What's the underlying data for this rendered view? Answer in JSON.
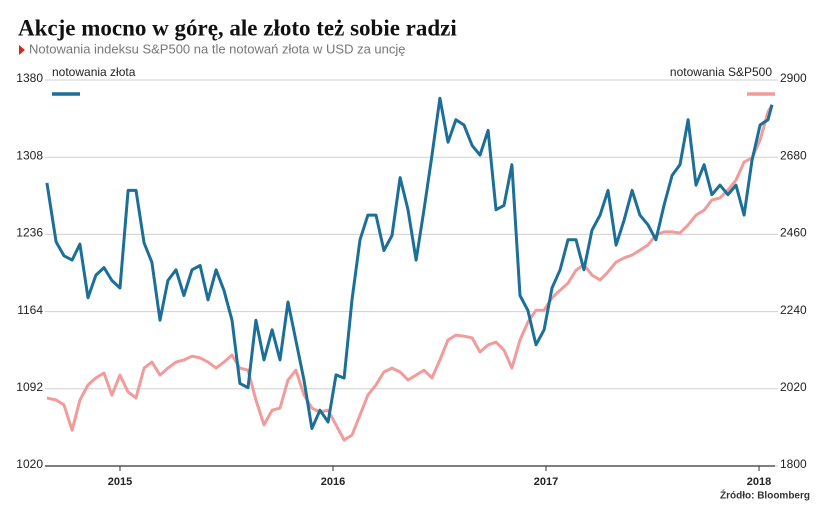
{
  "chart_data": {
    "type": "line",
    "title": "Akcje mocno w górę, ale złoto też sobie radzi",
    "subtitle": "Notowania indeksu S&P500 na tle notowań złota w USD za uncję",
    "source": "Źródło: Bloomberg",
    "x": [
      2014.657,
      2014.7,
      2014.737,
      2014.775,
      2014.812,
      2014.85,
      2014.887,
      2014.925,
      2014.962,
      2015.0,
      2015.038,
      2015.075,
      2015.113,
      2015.15,
      2015.188,
      2015.225,
      2015.263,
      2015.3,
      2015.338,
      2015.376,
      2015.413,
      2015.451,
      2015.488,
      2015.526,
      2015.563,
      2015.601,
      2015.638,
      2015.676,
      2015.714,
      2015.751,
      2015.789,
      2015.826,
      2015.864,
      2015.901,
      2015.939,
      2015.977,
      2016.014,
      2016.052,
      2016.089,
      2016.127,
      2016.164,
      2016.202,
      2016.239,
      2016.277,
      2016.315,
      2016.352,
      2016.39,
      2016.427,
      2016.465,
      2016.502,
      2016.54,
      2016.577,
      2016.615,
      2016.653,
      2016.69,
      2016.728,
      2016.765,
      2016.803,
      2016.84,
      2016.878,
      2016.915,
      2016.953,
      2016.991,
      2017.028,
      2017.066,
      2017.103,
      2017.141,
      2017.178,
      2017.216,
      2017.254,
      2017.291,
      2017.329,
      2017.366,
      2017.404,
      2017.441,
      2017.479,
      2017.516,
      2017.554,
      2017.592,
      2017.629,
      2017.667,
      2017.704,
      2017.742,
      2017.779,
      2017.817,
      2017.854,
      2017.892,
      2017.93,
      2017.967,
      2018.005,
      2018.042,
      2018.061
    ],
    "series": [
      {
        "name": "notowania złota",
        "color": "#1b6f98",
        "axis": "y",
        "values": [
          1284,
          1229,
          1216,
          1212,
          1227,
          1177,
          1198,
          1205,
          1193,
          1186,
          1277,
          1277,
          1228,
          1210,
          1156,
          1193,
          1203,
          1179,
          1203,
          1207,
          1175,
          1203,
          1184,
          1156,
          1097,
          1093,
          1156,
          1119,
          1147,
          1119,
          1173,
          1137,
          1100,
          1055,
          1072,
          1061,
          1105,
          1102,
          1175,
          1231,
          1254,
          1254,
          1221,
          1235,
          1289,
          1259,
          1212,
          1259,
          1310,
          1363,
          1322,
          1343,
          1338,
          1319,
          1310,
          1333,
          1259,
          1263,
          1301,
          1179,
          1165,
          1133,
          1147,
          1186,
          1203,
          1231,
          1231,
          1203,
          1240,
          1254,
          1277,
          1226,
          1249,
          1277,
          1254,
          1245,
          1231,
          1263,
          1291,
          1301,
          1343,
          1282,
          1301,
          1273,
          1282,
          1273,
          1282,
          1254,
          1305,
          1338,
          1343,
          1357
        ]
      },
      {
        "name": "notowania S&P500",
        "color": "#f29b9b",
        "axis": "y2",
        "values": [
          1994,
          1988,
          1974,
          1902,
          1988,
          2031,
          2051,
          2065,
          2002,
          2059,
          2011,
          1994,
          2079,
          2096,
          2059,
          2079,
          2096,
          2102,
          2113,
          2108,
          2096,
          2079,
          2096,
          2116,
          2079,
          2073,
          1988,
          1917,
          1959,
          1965,
          2045,
          2073,
          2002,
          1965,
          1954,
          1959,
          1917,
          1874,
          1888,
          1945,
          2002,
          2031,
          2068,
          2079,
          2068,
          2045,
          2059,
          2073,
          2051,
          2102,
          2159,
          2173,
          2170,
          2165,
          2125,
          2145,
          2153,
          2130,
          2079,
          2159,
          2210,
          2244,
          2244,
          2279,
          2301,
          2321,
          2358,
          2373,
          2344,
          2330,
          2353,
          2381,
          2393,
          2401,
          2415,
          2430,
          2458,
          2467,
          2467,
          2464,
          2487,
          2515,
          2529,
          2558,
          2564,
          2586,
          2615,
          2666,
          2678,
          2729,
          2809,
          2829
        ]
      }
    ],
    "xlim": [
      2014.648,
      2018.075
    ],
    "xticks": [
      2015,
      2016,
      2017,
      2018
    ],
    "ylim": [
      1020,
      1380
    ],
    "yticks": [
      1020,
      1092,
      1164,
      1236,
      1308,
      1380
    ],
    "y2lim": [
      1800,
      2900
    ],
    "y2ticks": [
      1800,
      2020,
      2240,
      2460,
      2680,
      2900
    ],
    "grid": true
  }
}
